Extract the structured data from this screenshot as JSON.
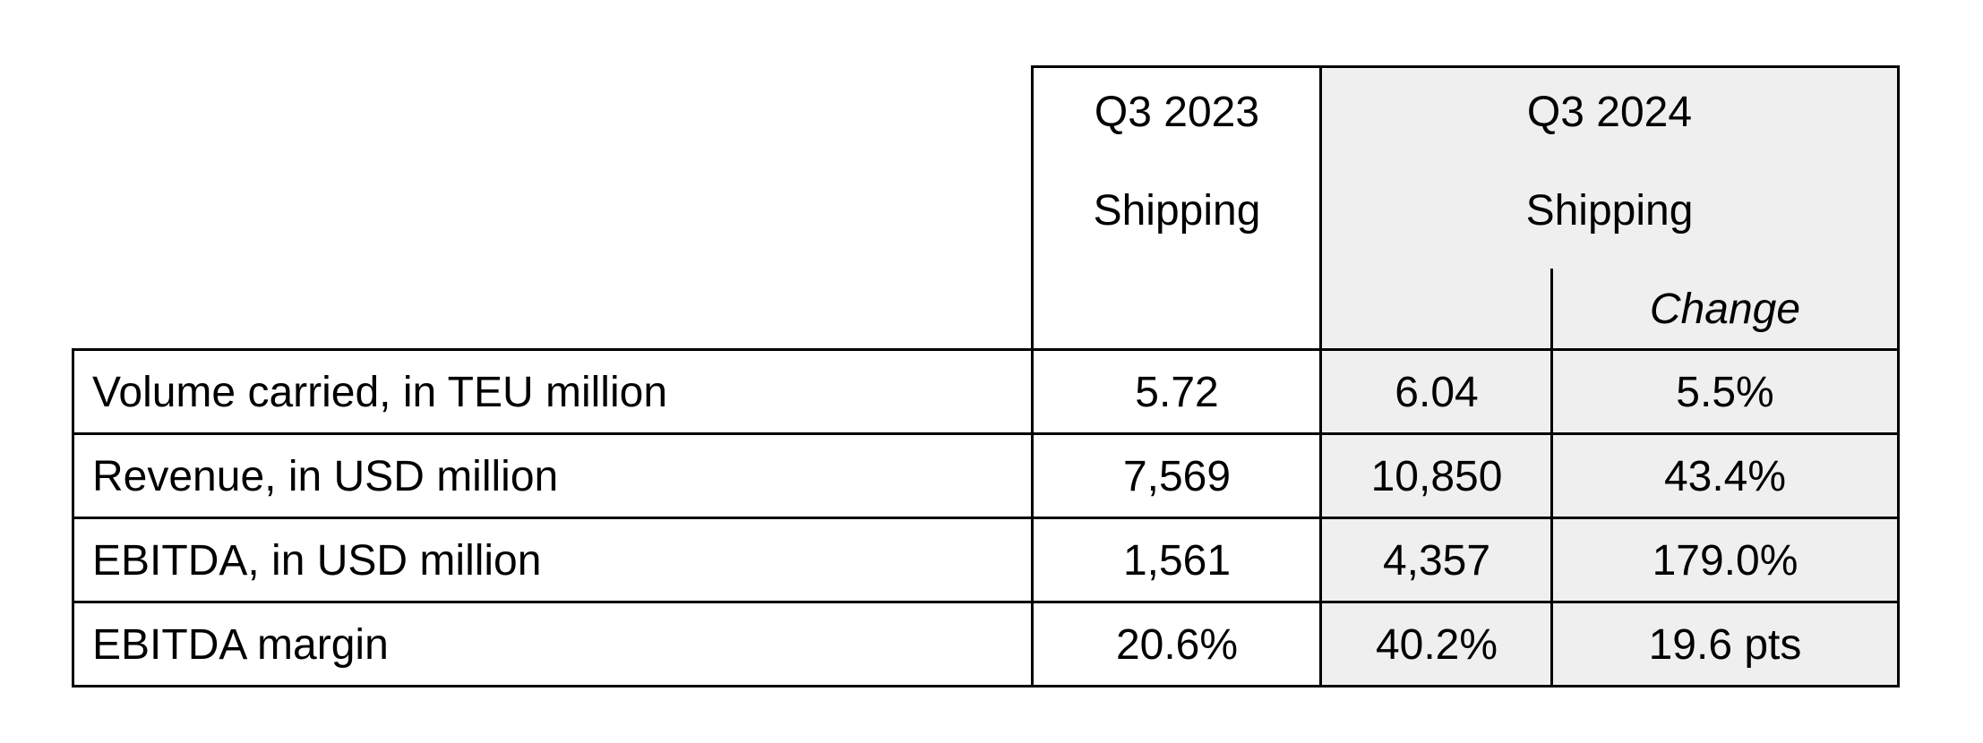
{
  "table": {
    "columns": {
      "q3_2023": {
        "period": "Q3 2023",
        "segment": "Shipping"
      },
      "q3_2024": {
        "period": "Q3 2024",
        "segment": "Shipping",
        "change_header": "Change"
      }
    },
    "rows": [
      {
        "label": "Volume carried, in TEU million",
        "q3_2023": "5.72",
        "q3_2024": "6.04",
        "change": "5.5%"
      },
      {
        "label": "Revenue, in USD million",
        "q3_2023": "7,569",
        "q3_2024": "10,850",
        "change": "43.4%"
      },
      {
        "label": "EBITDA, in USD million",
        "q3_2023": "1,561",
        "q3_2024": "4,357",
        "change": "179.0%"
      },
      {
        "label": "EBITDA margin",
        "q3_2023": "20.6%",
        "q3_2024": "40.2%",
        "change": "19.6 pts"
      }
    ]
  },
  "colors": {
    "highlight_fill": "#efefef",
    "grid": "#000000"
  }
}
